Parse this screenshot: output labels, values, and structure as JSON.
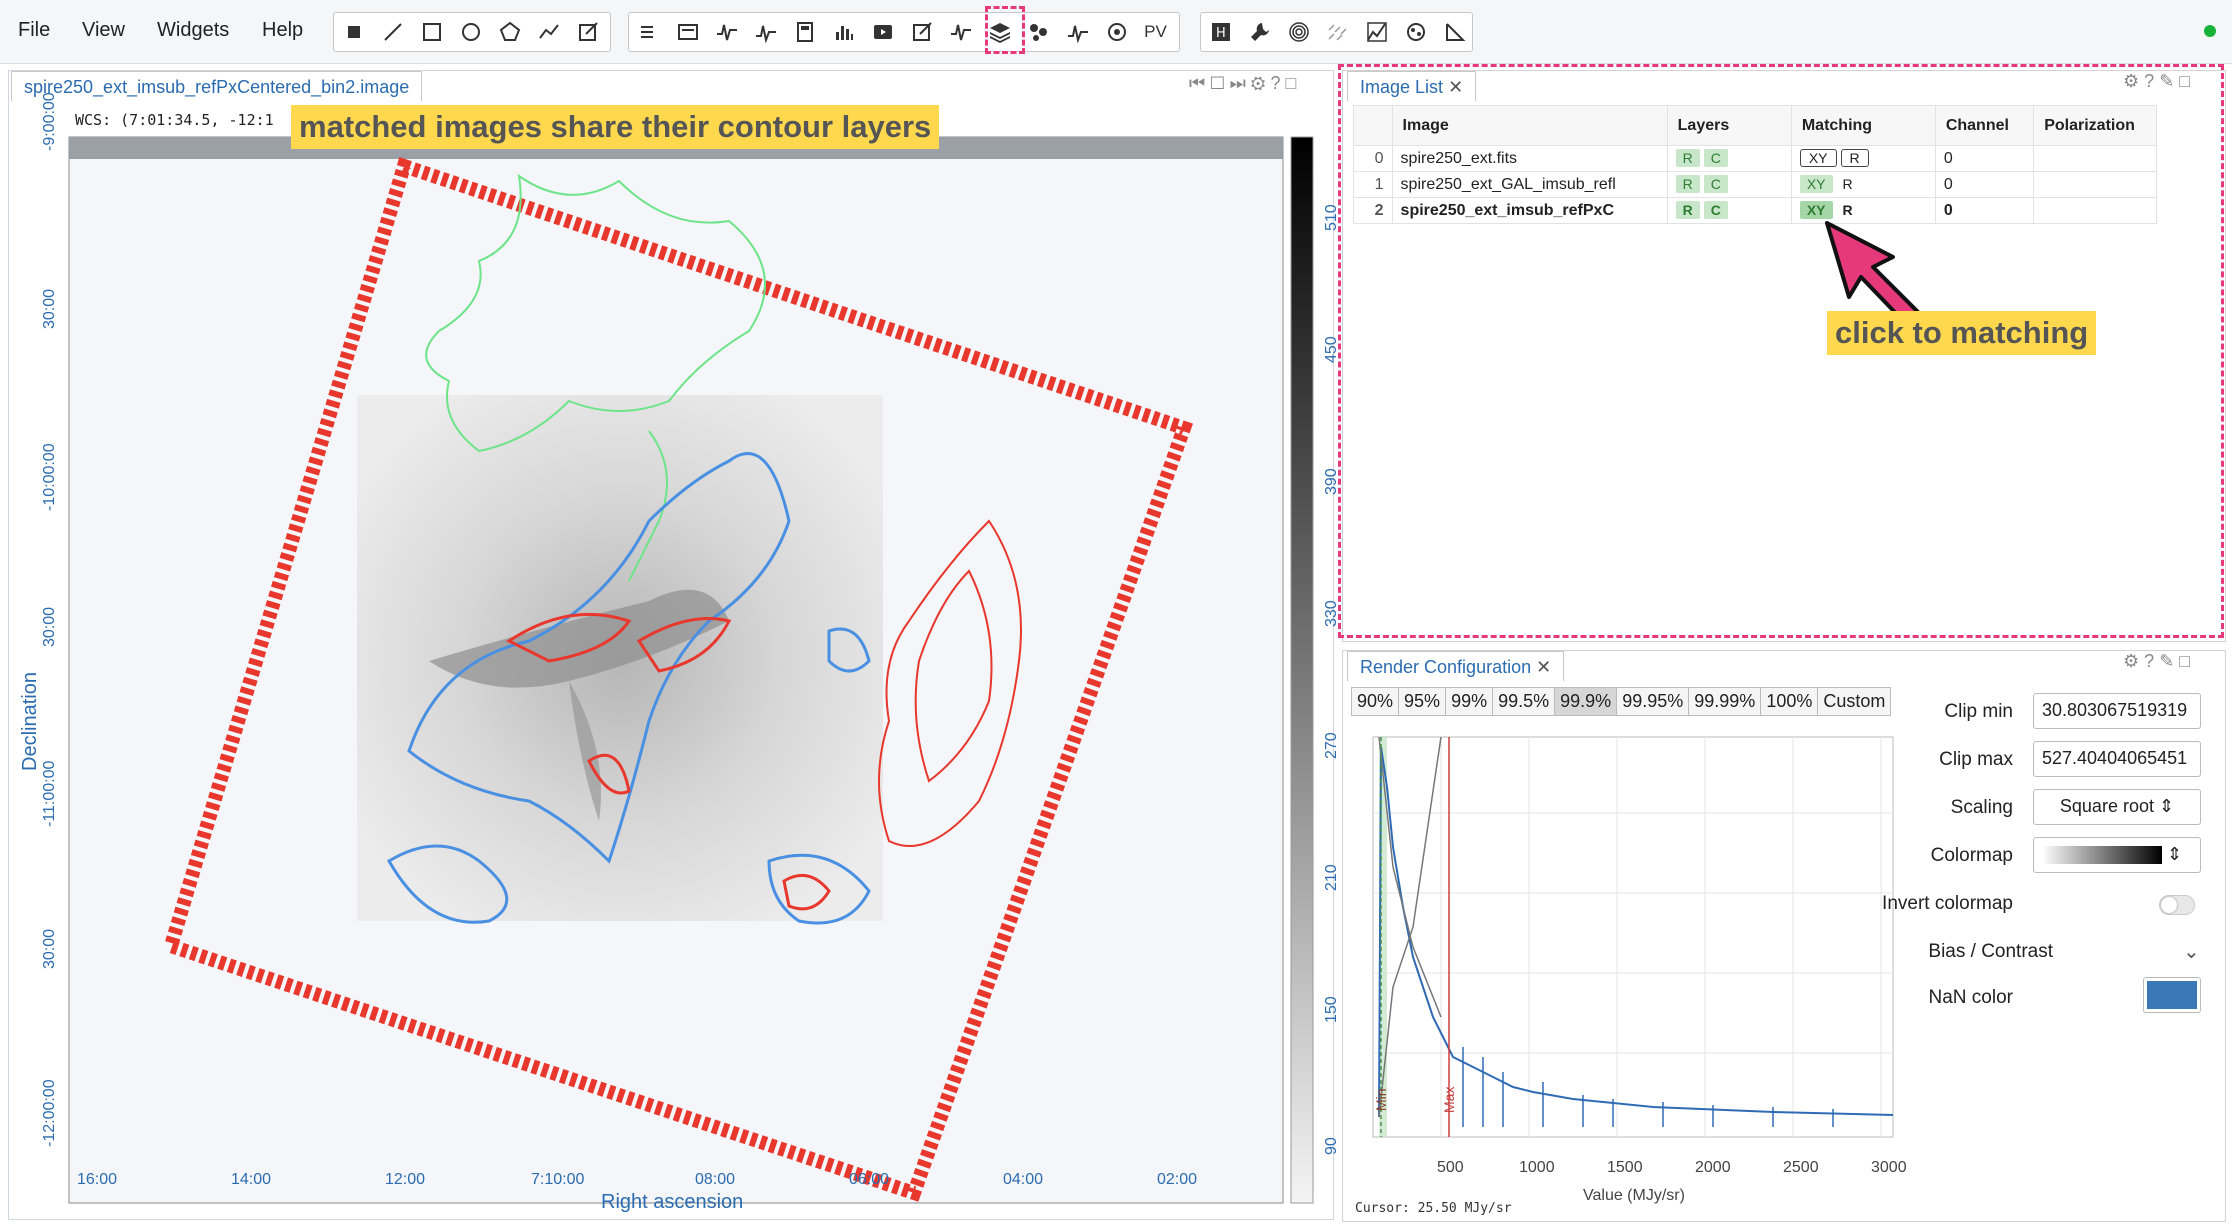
{
  "menu": {
    "file": "File",
    "view": "View",
    "widgets": "Widgets",
    "help": "Help"
  },
  "toolbar": {
    "pv_label": "PV"
  },
  "image_viewer": {
    "tab": "spire250_ext_imsub_refPxCentered_bin2.image",
    "wcs_readout": "WCS: (7:01:34.5, -12:1",
    "callout": "matched images share their contour layers",
    "y_ticks": [
      "-9:00:00",
      "30:00",
      "-10:00:00",
      "30:00",
      "-11:00:00",
      "30:00",
      "-12:00:00"
    ],
    "x_ticks": [
      "16:00",
      "14:00",
      "12:00",
      "7:10:00",
      "08:00",
      "06:00",
      "04:00",
      "02:00"
    ],
    "xlabel": "Right ascension",
    "ylabel": "Declination",
    "colorbar_ticks": [
      "510",
      "450",
      "390",
      "330",
      "270",
      "210",
      "150",
      "90"
    ]
  },
  "image_list": {
    "tab": "Image List",
    "headers": [
      "Image",
      "Layers",
      "Matching",
      "Channel",
      "Polarization"
    ],
    "rows": [
      {
        "idx": "0",
        "name": "spire250_ext.fits",
        "layer_r": "R",
        "layer_c": "C",
        "match_xy": "XY",
        "match_r": "R",
        "channel": "0",
        "polarization": ""
      },
      {
        "idx": "1",
        "name": "spire250_ext_GAL_imsub_refl",
        "layer_r": "R",
        "layer_c": "C",
        "match_xy": "XY",
        "match_r": "R",
        "channel": "0",
        "polarization": ""
      },
      {
        "idx": "2",
        "name": "spire250_ext_imsub_refPxC",
        "layer_r": "R",
        "layer_c": "C",
        "match_xy": "XY",
        "match_r": "R",
        "channel": "0",
        "polarization": ""
      }
    ],
    "callout": "click to matching"
  },
  "render_config": {
    "tab": "Render Configuration",
    "percentiles": [
      "90%",
      "95%",
      "99%",
      "99.5%",
      "99.9%",
      "99.95%",
      "99.99%",
      "100%",
      "Custom"
    ],
    "selected_percentile": "99.9%",
    "clip_min_label": "Clip min",
    "clip_min": "30.803067519319",
    "clip_max_label": "Clip max",
    "clip_max": "527.40404065451",
    "scaling_label": "Scaling",
    "scaling": "Square root",
    "colormap_label": "Colormap",
    "invert_label": "Invert colormap",
    "bias_label": "Bias / Contrast",
    "nan_label": "NaN color",
    "nan_color": "#3a78b8",
    "hist_x_ticks": [
      "500",
      "1000",
      "1500",
      "2000",
      "2500",
      "3000"
    ],
    "hist_xlabel": "Value (MJy/sr)",
    "min_marker": "Min",
    "max_marker": "Max",
    "cursor": "Cursor: 25.50 MJy/sr"
  }
}
